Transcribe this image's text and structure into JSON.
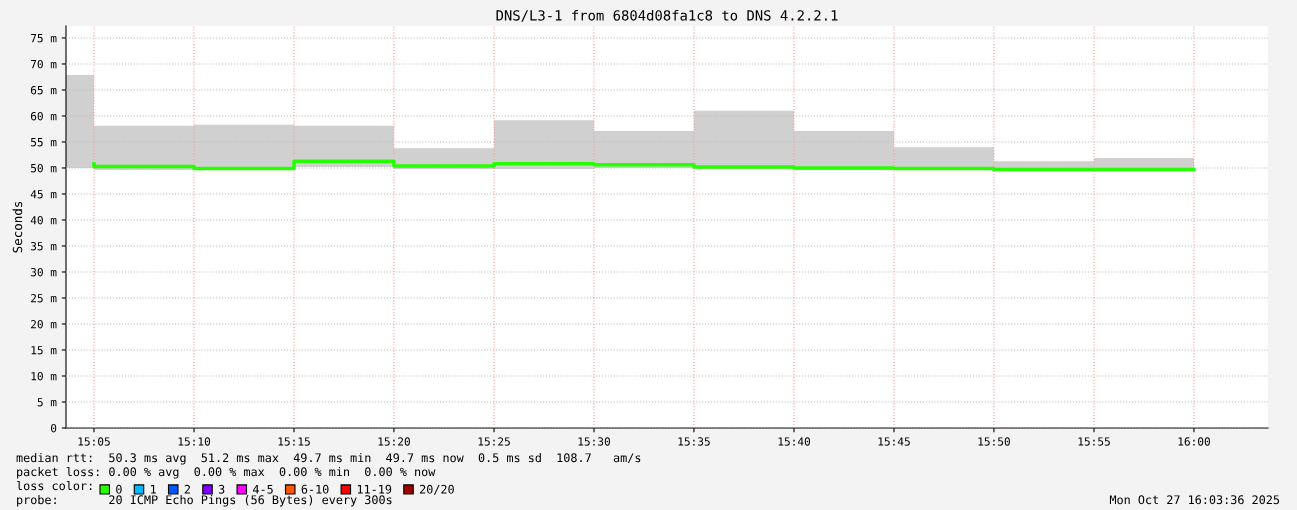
{
  "chart_data": {
    "type": "step",
    "title": "DNS/L3-1 from 6804d08fa1c8 to DNS 4.2.2.1",
    "ylabel": "Seconds",
    "legend_title": "loss color:",
    "x": [
      15.0833,
      15.1667,
      15.25,
      15.3333,
      15.4167,
      15.5,
      15.5833,
      15.6667,
      15.75,
      15.8333,
      15.9167,
      16.0
    ],
    "series": [
      {
        "name": "0",
        "color": "#26ff00",
        "values": [
          50.8,
          50.3,
          49.9,
          51.3,
          50.4,
          50.8,
          50.6,
          50.2,
          50.0,
          49.9,
          49.7,
          49.7
        ],
        "lower": [
          50.0,
          49.6,
          49.6,
          50.2,
          49.8,
          49.8,
          50.0,
          49.8,
          49.6,
          49.6,
          49.6,
          49.4
        ],
        "upper": [
          67.9,
          58.1,
          58.3,
          58.1,
          53.8,
          59.2,
          57.1,
          61.0,
          57.1,
          54.0,
          51.3,
          51.9
        ]
      },
      {
        "name": "1",
        "color": "#00b8ff",
        "values": [
          null,
          null,
          null,
          null,
          null,
          null,
          null,
          null,
          null,
          null,
          null,
          null
        ]
      },
      {
        "name": "2",
        "color": "#0059ff",
        "values": [
          null,
          null,
          null,
          null,
          null,
          null,
          null,
          null,
          null,
          null,
          null,
          null
        ]
      },
      {
        "name": "3",
        "color": "#7e00ff",
        "values": [
          null,
          null,
          null,
          null,
          null,
          null,
          null,
          null,
          null,
          null,
          null,
          null
        ]
      },
      {
        "name": "4-5",
        "color": "#ff00ff",
        "values": [
          null,
          null,
          null,
          null,
          null,
          null,
          null,
          null,
          null,
          null,
          null,
          null
        ]
      },
      {
        "name": "6-10",
        "color": "#ff5500",
        "values": [
          null,
          null,
          null,
          null,
          null,
          null,
          null,
          null,
          null,
          null,
          null,
          null
        ]
      },
      {
        "name": "11-19",
        "color": "#ff0000",
        "values": [
          null,
          null,
          null,
          null,
          null,
          null,
          null,
          null,
          null,
          null,
          null,
          null
        ]
      },
      {
        "name": "20/20",
        "color": "#a10000",
        "values": [
          null,
          null,
          null,
          null,
          null,
          null,
          null,
          null,
          null,
          null,
          null,
          null
        ]
      }
    ],
    "xlim": [
      15.06,
      16.0617
    ],
    "xticks": [
      {
        "value": 15.0833,
        "label": "15:05"
      },
      {
        "value": 15.1667,
        "label": "15:10"
      },
      {
        "value": 15.25,
        "label": "15:15"
      },
      {
        "value": 15.3333,
        "label": "15:20"
      },
      {
        "value": 15.4167,
        "label": "15:25"
      },
      {
        "value": 15.5,
        "label": "15:30"
      },
      {
        "value": 15.5833,
        "label": "15:35"
      },
      {
        "value": 15.6667,
        "label": "15:40"
      },
      {
        "value": 15.75,
        "label": "15:45"
      },
      {
        "value": 15.8333,
        "label": "15:50"
      },
      {
        "value": 15.9167,
        "label": "15:55"
      },
      {
        "value": 16.0,
        "label": "16:00"
      }
    ],
    "ylim": [
      0,
      77.3
    ],
    "yticks": [
      0,
      {
        "value": 5,
        "label": "5 m"
      },
      {
        "value": 10,
        "label": "10 m"
      },
      {
        "value": 15,
        "label": "15 m"
      },
      {
        "value": 20,
        "label": "20 m"
      },
      {
        "value": 25,
        "label": "25 m"
      },
      {
        "value": 30,
        "label": "30 m"
      },
      {
        "value": 35,
        "label": "35 m"
      },
      {
        "value": 40,
        "label": "40 m"
      },
      {
        "value": 45,
        "label": "45 m"
      },
      {
        "value": 50,
        "label": "50 m"
      },
      {
        "value": 55,
        "label": "55 m"
      },
      {
        "value": 60,
        "label": "60 m"
      },
      {
        "value": 65,
        "label": "65 m"
      },
      {
        "value": 70,
        "label": "70 m"
      },
      {
        "value": 75,
        "label": "75 m"
      }
    ],
    "grid": true,
    "legend": "bottom left",
    "annotations": [
      "median rtt:  50.3 ms avg  51.2 ms max  49.7 ms min  49.7 ms now  0.5 ms sd  108.7   am/s",
      "packet loss: 0.00 % avg  0.00 % max  0.00 % min  0.00 % now",
      "probe:       20 ICMP Echo Pings (56 Bytes) every 300s",
      "Mon Oct 27 16:03:36 2025"
    ]
  }
}
